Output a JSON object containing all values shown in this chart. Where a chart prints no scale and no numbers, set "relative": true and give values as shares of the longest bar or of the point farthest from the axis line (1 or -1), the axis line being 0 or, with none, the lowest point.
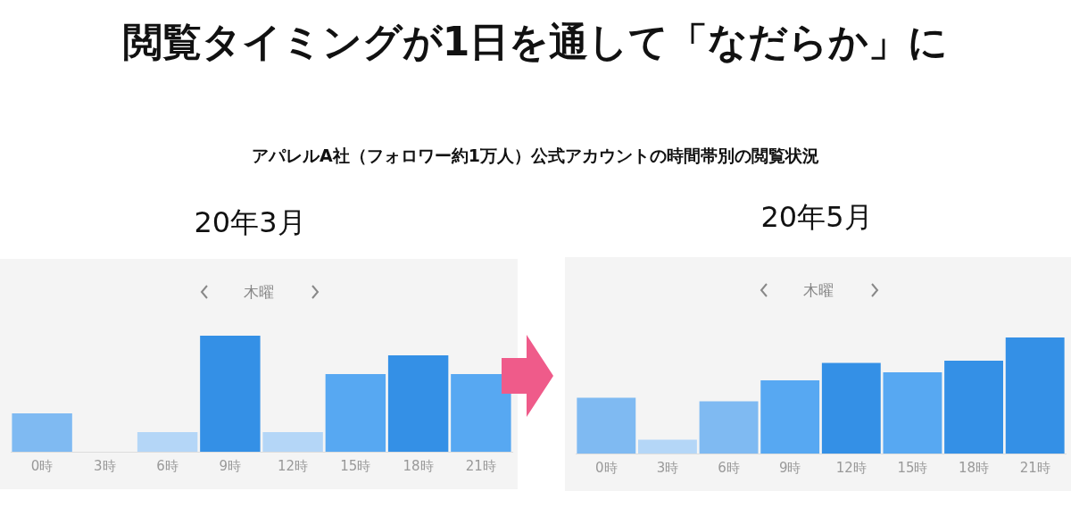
{
  "chart_data": [
    {
      "type": "bar",
      "title": "20年3月",
      "subtitle": "木曜",
      "annotations": [
        "閲覧タイミングが1日を通して「なだらか」に",
        "アパレルA社（フォロワー約1万人）公式アカウントの時間帯別の閲覧状況"
      ],
      "relative": true,
      "categories": [
        "0時",
        "3時",
        "6時",
        "9時",
        "12時",
        "15時",
        "18時",
        "21時"
      ],
      "values": [
        0.33,
        0,
        0.17,
        1,
        0.17,
        0.67,
        0.83,
        0.67
      ],
      "colors": [
        "#7fbaf2",
        "#7fbaf2",
        "#b4d6f7",
        "#3490e6",
        "#b4d6f7",
        "#57a8f2",
        "#3490e6",
        "#57a8f2"
      ]
    },
    {
      "type": "bar",
      "title": "20年5月",
      "subtitle": "木曜",
      "relative": true,
      "categories": [
        "0時",
        "3時",
        "6時",
        "9時",
        "12時",
        "15時",
        "18時",
        "21時"
      ],
      "values": [
        0.48,
        0.12,
        0.45,
        0.63,
        0.78,
        0.7,
        0.8,
        1
      ],
      "colors": [
        "#7fbaf2",
        "#b4d6f7",
        "#7fbaf2",
        "#57a8f2",
        "#3490e6",
        "#57a8f2",
        "#3490e6",
        "#3490e6"
      ]
    }
  ]
}
